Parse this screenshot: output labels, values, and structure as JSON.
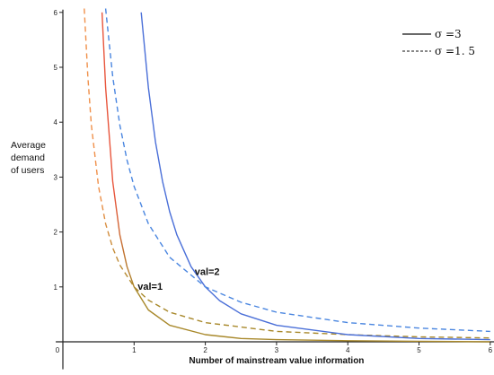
{
  "chart_data": {
    "type": "line",
    "title": "",
    "xlabel": "Number of mainstream value information",
    "ylabel_lines": [
      "Average",
      "demand",
      "of users"
    ],
    "xlim": [
      -0.1,
      6.1
    ],
    "ylim": [
      -0.5,
      6.05
    ],
    "x_ticks": [
      0,
      1,
      2,
      3,
      4,
      5,
      6
    ],
    "y_ticks": [
      1,
      2,
      3,
      4,
      5,
      6
    ],
    "grid": false,
    "legend_position": "top-right",
    "legend": [
      {
        "label": "σ =3",
        "style": "solid"
      },
      {
        "label": "σ =1. 5",
        "style": "dashed"
      }
    ],
    "annotations": [
      {
        "text": "val=1",
        "x": 1.05,
        "y": 0.95
      },
      {
        "text": "val=2",
        "x": 1.85,
        "y": 1.22
      }
    ],
    "series": [
      {
        "val": 1,
        "sigma": 3,
        "style": "solid",
        "color_top": "#e8553c",
        "color_bottom": "#a8882a",
        "x": [
          0.55,
          0.6,
          0.7,
          0.8,
          0.9,
          1.0,
          1.2,
          1.5,
          2.0,
          2.5,
          3.0,
          4.0,
          5.0,
          6.0
        ],
        "y": [
          6.0,
          4.63,
          2.92,
          1.95,
          1.37,
          1.0,
          0.58,
          0.3,
          0.13,
          0.06,
          0.04,
          0.02,
          0.01,
          0.0
        ]
      },
      {
        "val": 1,
        "sigma": 1.5,
        "style": "dashed",
        "color_top": "#f0904a",
        "color_bottom": "#a8882a",
        "x": [
          0.3,
          0.35,
          0.4,
          0.5,
          0.6,
          0.7,
          0.8,
          1.0,
          1.2,
          1.5,
          2.0,
          3.0,
          4.0,
          5.0,
          6.0
        ],
        "y": [
          6.08,
          4.83,
          3.95,
          2.83,
          2.15,
          1.71,
          1.4,
          1.0,
          0.76,
          0.54,
          0.35,
          0.19,
          0.13,
          0.09,
          0.07
        ]
      },
      {
        "val": 2,
        "sigma": 3,
        "style": "solid",
        "color": "#4a6fd8",
        "x": [
          1.1,
          1.2,
          1.3,
          1.4,
          1.5,
          1.6,
          1.8,
          2.0,
          2.2,
          2.5,
          3.0,
          4.0,
          5.0,
          6.0
        ],
        "y": [
          6.0,
          4.63,
          3.64,
          2.92,
          2.37,
          1.95,
          1.37,
          1.0,
          0.75,
          0.51,
          0.3,
          0.13,
          0.06,
          0.04
        ]
      },
      {
        "val": 2,
        "sigma": 1.5,
        "style": "dashed",
        "color": "#4a86e0",
        "x": [
          0.6,
          0.7,
          0.8,
          0.9,
          1.0,
          1.2,
          1.5,
          2.0,
          2.5,
          3.0,
          4.0,
          5.0,
          6.0
        ],
        "y": [
          6.08,
          4.83,
          3.95,
          3.31,
          2.83,
          2.15,
          1.54,
          1.0,
          0.72,
          0.54,
          0.35,
          0.25,
          0.19
        ]
      }
    ]
  }
}
